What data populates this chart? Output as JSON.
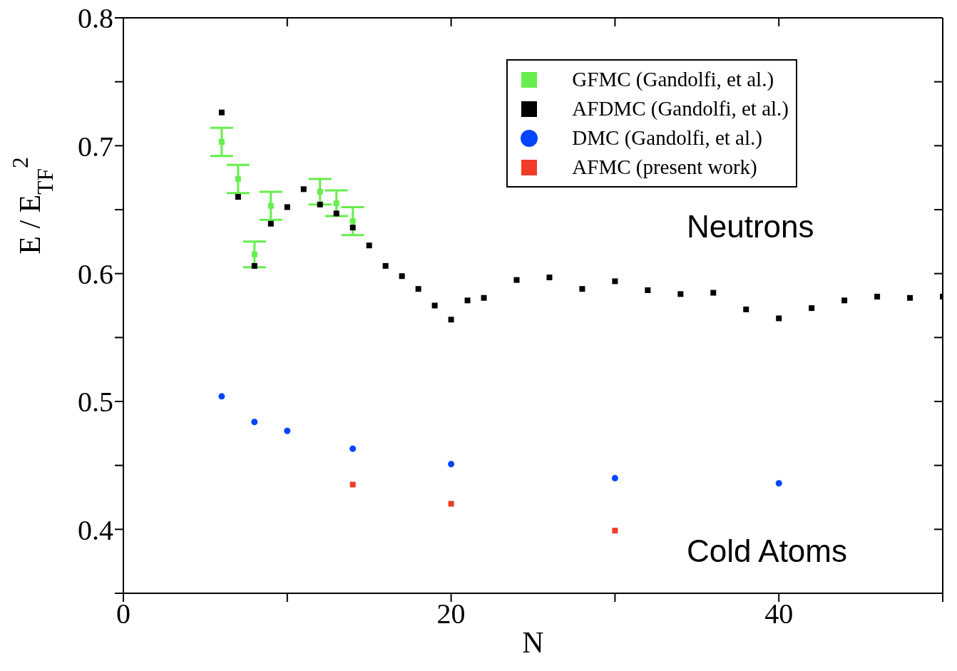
{
  "chart_data": {
    "type": "scatter",
    "xlabel": "N",
    "ylabel": "E / E$_{TF}$$^{2}$",
    "xlim": [
      0,
      50
    ],
    "xticks": [
      0,
      {
        "value": 10,
        "label": null
      },
      20,
      {
        "value": 30,
        "label": null
      },
      40,
      {
        "value": 50,
        "label": null
      }
    ],
    "ylim": [
      0.35,
      0.8
    ],
    "yticks": [
      {
        "value": 0.35,
        "label": null
      },
      0.4,
      {
        "value": 0.45,
        "label": null
      },
      0.5,
      {
        "value": 0.55,
        "label": null
      },
      0.6,
      {
        "value": 0.65,
        "label": null
      },
      0.7,
      {
        "value": 0.75,
        "label": null
      },
      0.8
    ],
    "legend": "top right",
    "annotations": [
      "Neutrons",
      "Cold Atoms"
    ],
    "series": [
      {
        "name": "GFMC (Gandolfi, et al.)",
        "color": "#66ee4c",
        "marker": "square",
        "x": [
          6,
          7,
          8,
          9,
          12,
          13,
          14
        ],
        "values": [
          0.703,
          0.674,
          0.615,
          0.653,
          0.664,
          0.655,
          0.641
        ],
        "errors": [
          0.011,
          0.011,
          0.01,
          0.011,
          0.01,
          0.01,
          0.011
        ]
      },
      {
        "name": "AFDMC (Gandolfi, et al.)",
        "color": "#000000",
        "marker": "square",
        "x": [
          6,
          7,
          8,
          9,
          10,
          11,
          12,
          13,
          14,
          15,
          16,
          17,
          18,
          19,
          20,
          21,
          22,
          24,
          26,
          28,
          30,
          32,
          34,
          36,
          38,
          40,
          42,
          44,
          46,
          48,
          50
        ],
        "values": [
          0.726,
          0.66,
          0.606,
          0.639,
          0.652,
          0.666,
          0.654,
          0.647,
          0.636,
          0.622,
          0.606,
          0.598,
          0.588,
          0.575,
          0.564,
          0.579,
          0.581,
          0.595,
          0.597,
          0.588,
          0.594,
          0.587,
          0.584,
          0.585,
          0.572,
          0.565,
          0.573,
          0.579,
          0.582,
          0.581,
          0.582
        ]
      },
      {
        "name": "DMC (Gandolfi, et al.)",
        "color": "#0044ff",
        "marker": "circle",
        "x": [
          6,
          8,
          10,
          14,
          20,
          30,
          40
        ],
        "values": [
          0.504,
          0.484,
          0.477,
          0.463,
          0.451,
          0.44,
          0.436
        ]
      },
      {
        "name": "AFMC (present work)",
        "color": "#f03c28",
        "marker": "square",
        "x": [
          14,
          20,
          30
        ],
        "values": [
          0.435,
          0.42,
          0.399
        ]
      }
    ]
  }
}
